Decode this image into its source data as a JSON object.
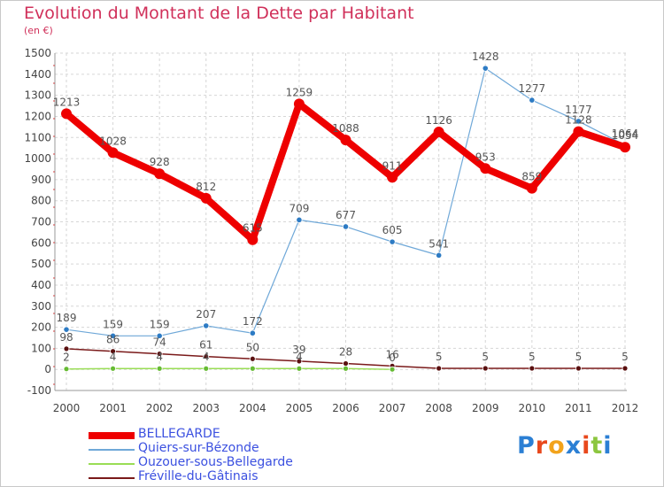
{
  "header": {
    "title": "Evolution du Montant de la Dette par Habitant",
    "subtitle": "(en €)"
  },
  "brand": {
    "logo_text": "Proxiti",
    "logo_colors": [
      "#2b7fd4",
      "#e8481c",
      "#f2a31b",
      "#2b7fd4",
      "#e8481c",
      "#8cc63f",
      "#2b7fd4"
    ]
  },
  "chart_data": {
    "type": "line",
    "x": [
      2000,
      2001,
      2002,
      2003,
      2004,
      2005,
      2006,
      2007,
      2008,
      2009,
      2010,
      2011,
      2012
    ],
    "y_ticks": [
      -100,
      0,
      100,
      200,
      300,
      400,
      500,
      600,
      700,
      800,
      900,
      1000,
      1100,
      1200,
      1300,
      1400,
      1500
    ],
    "ylim": [
      -100,
      1500
    ],
    "grid": true,
    "legend_position": "bottom-left",
    "series": [
      {
        "name": "BELLEGARDE",
        "color": "#ee0000",
        "marker": "#ee0000",
        "values": [
          1213,
          1028,
          928,
          812,
          615,
          1259,
          1088,
          911,
          1126,
          953,
          859,
          1128,
          1054
        ],
        "labels": [
          "1213",
          "1028",
          "928",
          "812",
          "615",
          "1259",
          "1088",
          "911",
          "1126",
          "953",
          "859",
          "1128",
          "1054"
        ]
      },
      {
        "name": "Quiers-sur-Bézonde",
        "color": "#6fa8d8",
        "marker": "#2d7bc4",
        "values": [
          189,
          159,
          159,
          207,
          172,
          709,
          677,
          605,
          541,
          1428,
          1277,
          1177,
          1064
        ],
        "labels": [
          "189",
          "159",
          "159",
          "207",
          "172",
          "709",
          "677",
          "605",
          "541",
          "1428",
          "1277",
          "1177",
          "1064"
        ]
      },
      {
        "name": "Ouzouer-sous-Bellegarde",
        "color": "#99dd55",
        "marker": "#66bb33",
        "values": [
          2,
          4,
          4,
          4,
          4,
          4,
          4,
          0,
          null,
          null,
          null,
          null,
          null
        ],
        "labels": [
          "2",
          "4",
          "4",
          "4",
          "",
          "4",
          "",
          "0",
          "",
          "",
          "",
          "",
          ""
        ]
      },
      {
        "name": "Fréville-du-Gâtinais",
        "color": "#7a1a1a",
        "marker": "#5a1010",
        "values": [
          98,
          86,
          74,
          61,
          50,
          39,
          28,
          16,
          5,
          5,
          5,
          5,
          5
        ],
        "labels": [
          "98",
          "86",
          "74",
          "61",
          "50",
          "39",
          "28",
          "16",
          "5",
          "5",
          "5",
          "5",
          "5"
        ]
      }
    ]
  }
}
